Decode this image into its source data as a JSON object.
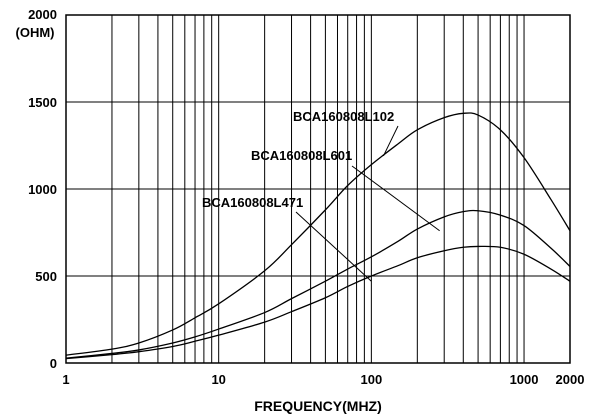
{
  "chart_data": {
    "type": "line",
    "title": "",
    "xlabel": "FREQUENCY(MHZ)",
    "ylabel": "",
    "y_unit_label": "(OHM)",
    "x_scale": "log",
    "xlim": [
      1,
      2000
    ],
    "ylim": [
      0,
      2000
    ],
    "x_tick_labels": [
      "1",
      "10",
      "100",
      "1000",
      "2000"
    ],
    "x_tick_values": [
      1,
      10,
      100,
      1000,
      2000
    ],
    "y_tick_labels": [
      "0",
      "500",
      "1000",
      "1500",
      "2000"
    ],
    "y_tick_values": [
      0,
      500,
      1000,
      1500,
      2000
    ],
    "grid": true,
    "legend": "none",
    "line_color": "#000000",
    "series": [
      {
        "name": "BCA160808L102",
        "points": [
          [
            1,
            45
          ],
          [
            2,
            80
          ],
          [
            3,
            115
          ],
          [
            5,
            190
          ],
          [
            7,
            260
          ],
          [
            10,
            340
          ],
          [
            20,
            530
          ],
          [
            30,
            680
          ],
          [
            50,
            880
          ],
          [
            70,
            1020
          ],
          [
            100,
            1140
          ],
          [
            150,
            1260
          ],
          [
            200,
            1340
          ],
          [
            300,
            1410
          ],
          [
            400,
            1435
          ],
          [
            500,
            1425
          ],
          [
            700,
            1340
          ],
          [
            1000,
            1180
          ],
          [
            1500,
            940
          ],
          [
            2000,
            760
          ]
        ]
      },
      {
        "name": "BCA160808L601",
        "points": [
          [
            1,
            28
          ],
          [
            2,
            55
          ],
          [
            3,
            75
          ],
          [
            5,
            115
          ],
          [
            7,
            150
          ],
          [
            10,
            195
          ],
          [
            20,
            290
          ],
          [
            30,
            370
          ],
          [
            50,
            470
          ],
          [
            70,
            540
          ],
          [
            100,
            610
          ],
          [
            150,
            700
          ],
          [
            200,
            770
          ],
          [
            300,
            840
          ],
          [
            400,
            870
          ],
          [
            500,
            875
          ],
          [
            700,
            850
          ],
          [
            1000,
            790
          ],
          [
            1500,
            660
          ],
          [
            2000,
            555
          ]
        ]
      },
      {
        "name": "BCA160808L471",
        "points": [
          [
            1,
            25
          ],
          [
            2,
            48
          ],
          [
            3,
            65
          ],
          [
            5,
            95
          ],
          [
            7,
            125
          ],
          [
            10,
            160
          ],
          [
            20,
            235
          ],
          [
            30,
            295
          ],
          [
            50,
            375
          ],
          [
            70,
            440
          ],
          [
            100,
            500
          ],
          [
            150,
            560
          ],
          [
            200,
            605
          ],
          [
            300,
            645
          ],
          [
            400,
            665
          ],
          [
            500,
            670
          ],
          [
            700,
            665
          ],
          [
            1000,
            625
          ],
          [
            1500,
            540
          ],
          [
            2000,
            470
          ]
        ]
      }
    ],
    "annotations": [
      {
        "text": "BCA160808L102",
        "series": "BCA160808L102",
        "point": [
          120,
          1190
        ]
      },
      {
        "text": "BCA160808L601",
        "series": "BCA160808L601",
        "point": [
          280,
          760
        ]
      },
      {
        "text": "BCA160808L471",
        "series": "BCA160808L471",
        "point": [
          100,
          470
        ]
      }
    ]
  }
}
